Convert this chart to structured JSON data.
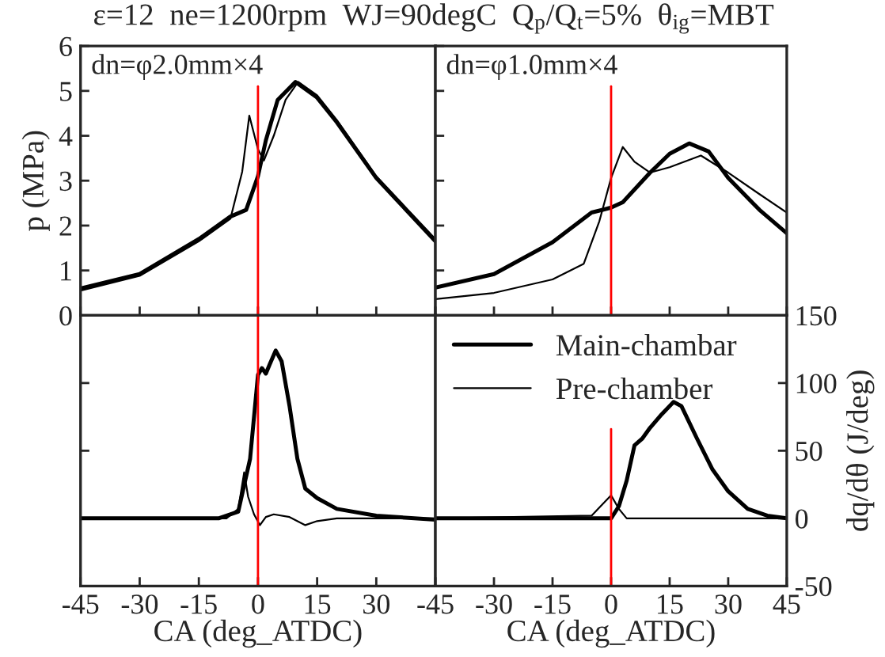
{
  "chart_data": [
    {
      "type": "line",
      "title": "ε=12  ne=1200rpm  WJ=90degC  Q$_{p}$/Q$_{t}$=5%  θ$_{ig}$=MBT",
      "ylabel": "p (MPa)",
      "annotations": [
        "dn=φ2.0mm×4"
      ],
      "xlim": [
        -45,
        45
      ],
      "xticks": [
        -45,
        -30,
        -15,
        0,
        15,
        30,
        45
      ],
      "ylim": [
        0,
        6
      ],
      "yticks": [
        0,
        1,
        2,
        3,
        4,
        5,
        6
      ],
      "tick_labels": "y",
      "ref_lines": [
        {
          "axis": "x",
          "value": 0,
          "color": "#ff0000"
        }
      ],
      "series": [
        {
          "color": "#000000",
          "x": [
            -45,
            -30,
            -15,
            -7,
            -3,
            0,
            2,
            5,
            9.5,
            15,
            20,
            30,
            45
          ],
          "values": [
            0.6,
            0.92,
            1.7,
            2.2,
            2.35,
            3.1,
            3.9,
            4.8,
            5.2,
            4.85,
            4.3,
            3.06,
            1.65
          ]
        },
        {
          "color": "#000000",
          "x": [
            -45,
            -30,
            -15,
            -7,
            -4,
            -2.2,
            0,
            1.5,
            4,
            7,
            10.2,
            15,
            20,
            30,
            45
          ],
          "values": [
            0.55,
            0.88,
            1.65,
            2.15,
            3.2,
            4.45,
            3.7,
            3.45,
            4.0,
            4.8,
            5.2,
            4.9,
            4.35,
            3.1,
            1.7
          ]
        }
      ]
    },
    {
      "type": "line",
      "annotations": [
        "dn=φ1.0mm×4"
      ],
      "xlim": [
        -45,
        45
      ],
      "xticks": [
        -45,
        -30,
        -15,
        0,
        15,
        30,
        45
      ],
      "ylim": [
        0,
        6
      ],
      "yticks": [
        0,
        1,
        2,
        3,
        4,
        5,
        6
      ],
      "tick_labels": false,
      "ref_lines": [
        {
          "axis": "x",
          "value": 0,
          "color": "#ff0000"
        }
      ],
      "series": [
        {
          "color": "#000000",
          "x": [
            -45,
            -30,
            -15,
            -5,
            0,
            3,
            10,
            15,
            20,
            25,
            30,
            38,
            45
          ],
          "values": [
            0.62,
            0.92,
            1.63,
            2.29,
            2.4,
            2.52,
            3.18,
            3.6,
            3.83,
            3.65,
            3.06,
            2.35,
            1.83
          ]
        },
        {
          "color": "#000000",
          "x": [
            -45,
            -30,
            -15,
            -7,
            -3,
            0,
            3,
            6,
            10,
            15,
            23,
            30,
            38,
            45
          ],
          "values": [
            0.36,
            0.5,
            0.8,
            1.15,
            2.1,
            3.06,
            3.75,
            3.42,
            3.18,
            3.3,
            3.56,
            3.18,
            2.7,
            2.29
          ]
        }
      ]
    },
    {
      "type": "line",
      "xlabel": "CA (deg_ATDC)",
      "xlim": [
        -45,
        45
      ],
      "xticks": [
        -45,
        -30,
        -15,
        0,
        15,
        30
      ],
      "ylim": [
        -50,
        150
      ],
      "yticks": [
        -50,
        0,
        50,
        100,
        150
      ],
      "tick_labels": "x",
      "ref_lines": [
        {
          "axis": "x",
          "value": 0,
          "color": "#ff0000"
        }
      ],
      "series": [
        {
          "color": "#000000",
          "x": [
            -45,
            -10,
            -5,
            -2,
            0,
            1,
            2,
            3,
            4.5,
            6,
            8,
            10,
            12,
            15,
            20,
            30,
            45
          ],
          "values": [
            0,
            0,
            5,
            44,
            106,
            111,
            107,
            114,
            124,
            116,
            83,
            44,
            22,
            15,
            7,
            2,
            -1
          ]
        },
        {
          "color": "#000000",
          "x": [
            -45,
            -8,
            -5,
            -3.5,
            -2.5,
            -1,
            0.5,
            2,
            4,
            8,
            12,
            15,
            20,
            45
          ],
          "values": [
            0,
            0,
            7,
            34,
            16,
            3,
            -5,
            1,
            3,
            1,
            -5,
            -2,
            0,
            0
          ]
        }
      ]
    },
    {
      "type": "line",
      "xlabel": "CA (deg_ATDC)",
      "y2label": "dq/dθ (J/deg)",
      "xlim": [
        -45,
        45
      ],
      "xticks": [
        -45,
        -30,
        -15,
        0,
        15,
        30,
        45
      ],
      "y2lim": [
        -50,
        150
      ],
      "y2ticks": [
        -50,
        0,
        50,
        100,
        150
      ],
      "legend": "top left",
      "ref_lines": [
        {
          "axis": "x",
          "value": 0,
          "color": "#ff0000"
        }
      ],
      "series": [
        {
          "name": "Main-chambar",
          "axis": "y2",
          "color": "#000000",
          "x": [
            -45,
            -5,
            0,
            2,
            4,
            6,
            8,
            10,
            13,
            16,
            18,
            22,
            26,
            30,
            35,
            40,
            45
          ],
          "values": [
            0,
            0,
            0,
            9,
            28,
            54,
            59,
            67,
            77,
            86,
            83,
            59,
            36,
            20,
            7,
            2,
            0
          ]
        },
        {
          "name": "Pre-chamber",
          "axis": "y2",
          "color": "#000000",
          "x": [
            -45,
            -5,
            -2,
            0,
            2,
            4,
            45
          ],
          "values": [
            0,
            2,
            11,
            17,
            7,
            0,
            0
          ]
        }
      ]
    }
  ]
}
